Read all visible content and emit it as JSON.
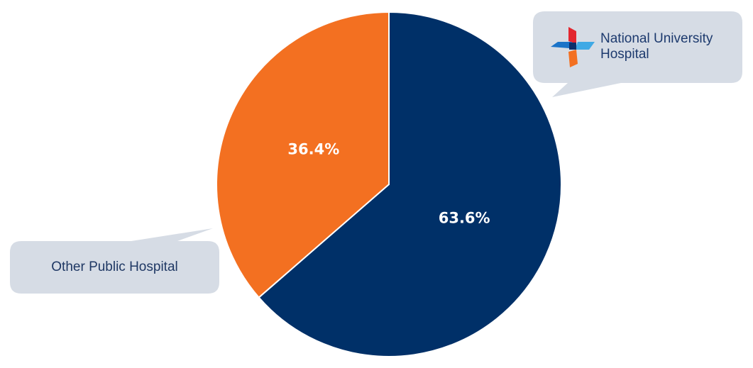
{
  "chart_data": {
    "type": "pie",
    "categories": [
      "National University Hospital",
      "Other Public Hospital"
    ],
    "values": [
      63.6,
      36.4
    ],
    "value_labels": [
      "63.6%",
      "36.4%"
    ],
    "colors": [
      "#003068",
      "#f37021"
    ]
  }
}
